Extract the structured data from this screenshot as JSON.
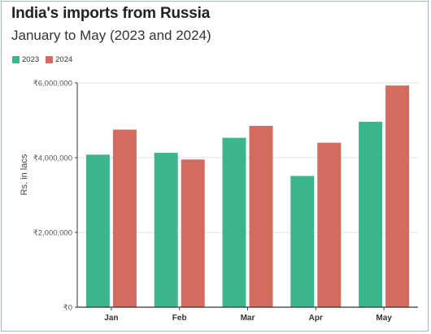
{
  "chart_data": {
    "type": "bar",
    "title": "India's imports from Russia",
    "subtitle": "January to May (2023 and 2024)",
    "ylabel": "Rs. in lacs",
    "xlabel": "",
    "categories": [
      "Jan",
      "Feb",
      "Mar",
      "Apr",
      "May"
    ],
    "series": [
      {
        "name": "2023",
        "color": "#3bb58e",
        "values": [
          4080000,
          4130000,
          4530000,
          3510000,
          4960000
        ]
      },
      {
        "name": "2024",
        "color": "#d36b5e",
        "values": [
          4750000,
          3950000,
          4850000,
          4400000,
          5930000
        ]
      }
    ],
    "ylim": [
      0,
      6000000
    ],
    "yticks": [
      0,
      2000000,
      4000000,
      6000000
    ],
    "ytick_labels": [
      "₹0",
      "₹2,000,000",
      "₹4,000,000",
      "₹6,000,000"
    ],
    "grid": true,
    "legend_position": "top-left"
  }
}
